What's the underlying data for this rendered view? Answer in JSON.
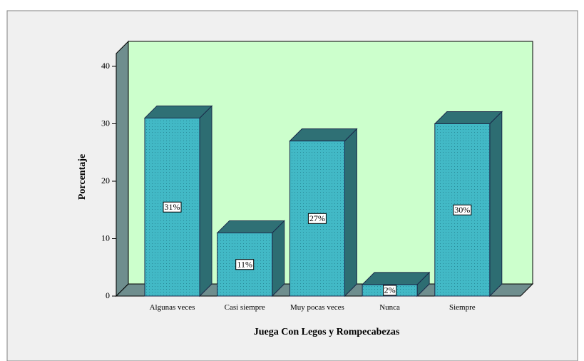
{
  "chart_data": {
    "type": "bar3d",
    "xlabel": "Juega Con Legos y Rompecabezas",
    "ylabel": "Porcentaje",
    "categories": [
      "Algunas veces",
      "Casi siempre",
      "Muy pocas veces",
      "Nunca",
      "Siempre"
    ],
    "values": [
      31,
      11,
      27,
      2,
      30
    ],
    "value_labels": [
      "31%",
      "11%",
      "27%",
      "2%",
      "30%"
    ],
    "color": "#42b9c6",
    "ylim": [
      0,
      40
    ],
    "yticks": [
      0,
      10,
      20,
      30,
      40
    ]
  }
}
